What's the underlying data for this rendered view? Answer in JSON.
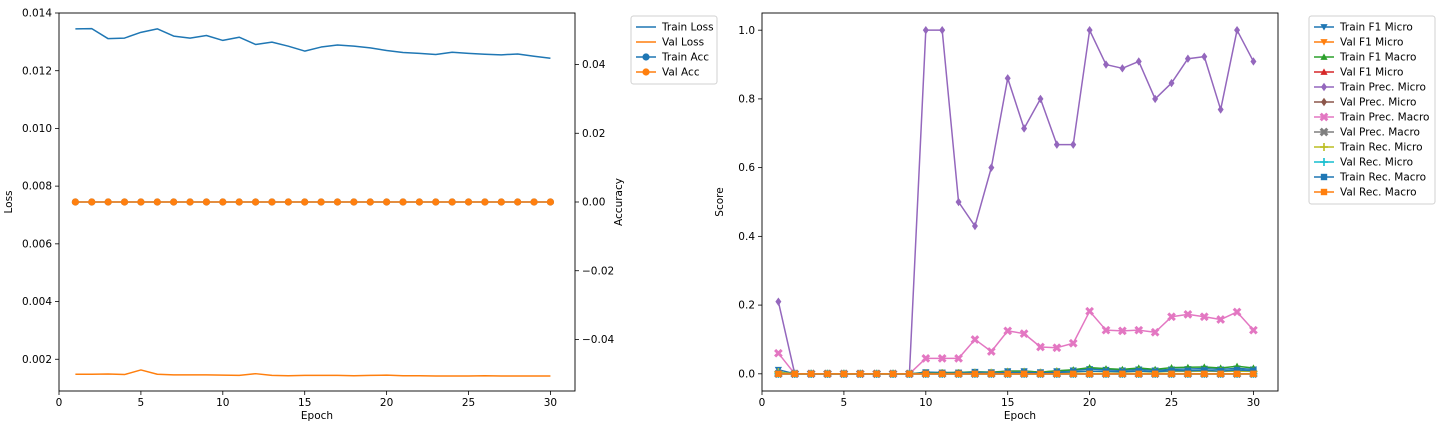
{
  "chart_data": [
    {
      "type": "line",
      "xlabel": "Epoch",
      "ylabel": "Loss",
      "y2label": "Accuracy",
      "xlim": [
        0,
        31.5
      ],
      "ylim": [
        0.0009,
        0.014
      ],
      "y2lim": [
        -0.055,
        0.055
      ],
      "xticks": [
        "0",
        "5",
        "10",
        "15",
        "20",
        "25",
        "30"
      ],
      "yticks": [
        "0.002",
        "0.004",
        "0.006",
        "0.008",
        "0.010",
        "0.012",
        "0.014"
      ],
      "y2ticks": [
        "−0.04",
        "−0.02",
        "0.00",
        "0.02",
        "0.04"
      ],
      "grid": false,
      "legend_position": "outside-right-top",
      "x": [
        1,
        2,
        3,
        4,
        5,
        6,
        7,
        8,
        9,
        10,
        11,
        12,
        13,
        14,
        15,
        16,
        17,
        18,
        19,
        20,
        21,
        22,
        23,
        24,
        25,
        26,
        27,
        28,
        29,
        30
      ],
      "series": [
        {
          "name": "Train Loss",
          "axis": "left",
          "color": "#1f77b4",
          "marker": "none",
          "values": [
            0.01345,
            0.01346,
            0.01311,
            0.01313,
            0.01333,
            0.01345,
            0.0132,
            0.01313,
            0.01322,
            0.01305,
            0.01316,
            0.01291,
            0.01299,
            0.01285,
            0.01268,
            0.01282,
            0.01289,
            0.01285,
            0.01279,
            0.0127,
            0.01263,
            0.0126,
            0.01256,
            0.01264,
            0.0126,
            0.01257,
            0.01255,
            0.01258,
            0.0125,
            0.01243
          ]
        },
        {
          "name": "Val Loss",
          "axis": "left",
          "color": "#ff7f0e",
          "marker": "none",
          "values": [
            0.00148,
            0.00148,
            0.00149,
            0.00147,
            0.00163,
            0.00148,
            0.00146,
            0.00146,
            0.00146,
            0.00145,
            0.00144,
            0.0015,
            0.00144,
            0.00143,
            0.00144,
            0.00144,
            0.00144,
            0.00143,
            0.00144,
            0.00145,
            0.00143,
            0.00143,
            0.00142,
            0.00142,
            0.00142,
            0.00143,
            0.00142,
            0.00142,
            0.00142,
            0.00142
          ]
        },
        {
          "name": "Train Acc",
          "axis": "right",
          "color": "#1f77b4",
          "marker": "circle",
          "values": [
            0,
            0,
            0,
            0,
            0,
            0,
            0,
            0,
            0,
            0,
            0,
            0,
            0,
            0,
            0,
            0,
            0,
            0,
            0,
            0,
            0,
            0,
            0,
            0,
            0,
            0,
            0,
            0,
            0,
            0
          ]
        },
        {
          "name": "Val Acc",
          "axis": "right",
          "color": "#ff7f0e",
          "marker": "circle",
          "values": [
            0,
            0,
            0,
            0,
            0,
            0,
            0,
            0,
            0,
            0,
            0,
            0,
            0,
            0,
            0,
            0,
            0,
            0,
            0,
            0,
            0,
            0,
            0,
            0,
            0,
            0,
            0,
            0,
            0,
            0
          ]
        }
      ]
    },
    {
      "type": "line",
      "xlabel": "Epoch",
      "ylabel": "Score",
      "xlim": [
        0,
        31.5
      ],
      "ylim": [
        -0.05,
        1.05
      ],
      "xticks": [
        "0",
        "5",
        "10",
        "15",
        "20",
        "25",
        "30"
      ],
      "yticks": [
        "0.0",
        "0.2",
        "0.4",
        "0.6",
        "0.8",
        "1.0"
      ],
      "grid": false,
      "legend_position": "outside-right-top",
      "x": [
        1,
        2,
        3,
        4,
        5,
        6,
        7,
        8,
        9,
        10,
        11,
        12,
        13,
        14,
        15,
        16,
        17,
        18,
        19,
        20,
        21,
        22,
        23,
        24,
        25,
        26,
        27,
        28,
        29,
        30
      ],
      "series": [
        {
          "name": "Train F1 Micro",
          "color": "#1f77b4",
          "marker": "triangle-down",
          "values": [
            0.012,
            0,
            0,
            0,
            0,
            0,
            0,
            0,
            0,
            0.005,
            0.004,
            0.004,
            0.006,
            0.005,
            0.008,
            0.008,
            0.005,
            0.008,
            0.01,
            0.014,
            0.012,
            0.01,
            0.013,
            0.01,
            0.013,
            0.014,
            0.015,
            0.013,
            0.016,
            0.013
          ]
        },
        {
          "name": "Val F1 Micro",
          "color": "#ff7f0e",
          "marker": "triangle-down",
          "values": [
            0,
            0,
            0,
            0,
            0,
            0,
            0,
            0,
            0,
            0,
            0,
            0,
            0,
            0,
            0,
            0,
            0,
            0,
            0,
            0,
            0,
            0,
            0,
            0,
            0,
            0,
            0,
            0,
            0,
            0
          ]
        },
        {
          "name": "Train F1 Macro",
          "color": "#2ca02c",
          "marker": "triangle-up",
          "values": [
            0.003,
            0,
            0,
            0,
            0,
            0,
            0,
            0,
            0,
            0.003,
            0.003,
            0.004,
            0.005,
            0.004,
            0.008,
            0.008,
            0.005,
            0.009,
            0.012,
            0.018,
            0.015,
            0.013,
            0.017,
            0.013,
            0.018,
            0.019,
            0.02,
            0.017,
            0.022,
            0.017
          ]
        },
        {
          "name": "Val F1 Micro",
          "color": "#d62728",
          "marker": "triangle-up",
          "values": [
            0,
            0,
            0,
            0,
            0,
            0,
            0,
            0,
            0,
            0,
            0,
            0,
            0,
            0,
            0,
            0,
            0,
            0,
            0,
            0,
            0,
            0,
            0,
            0,
            0,
            0,
            0,
            0,
            0,
            0
          ]
        },
        {
          "name": "Train Prec. Micro",
          "color": "#9467bd",
          "marker": "diamond",
          "values": [
            0.21,
            0,
            0,
            0,
            0,
            0,
            0,
            0,
            0,
            1.0,
            1.0,
            0.5,
            0.43,
            0.6,
            0.86,
            0.714,
            0.8,
            0.667,
            0.667,
            1.0,
            0.9,
            0.889,
            0.909,
            0.8,
            0.846,
            0.917,
            0.923,
            0.769,
            1.0,
            0.909
          ]
        },
        {
          "name": "Val Prec. Micro",
          "color": "#8c564b",
          "marker": "diamond",
          "values": [
            0,
            0,
            0,
            0,
            0,
            0,
            0,
            0,
            0,
            0,
            0,
            0,
            0,
            0,
            0,
            0,
            0,
            0,
            0,
            0,
            0,
            0,
            0,
            0,
            0,
            0,
            0,
            0,
            0,
            0
          ]
        },
        {
          "name": "Train Prec. Macro",
          "color": "#e377c2",
          "marker": "x-filled",
          "values": [
            0.06,
            0,
            0,
            0,
            0,
            0,
            0,
            0,
            0,
            0.045,
            0.045,
            0.045,
            0.1,
            0.065,
            0.125,
            0.117,
            0.078,
            0.076,
            0.089,
            0.182,
            0.127,
            0.125,
            0.127,
            0.121,
            0.166,
            0.173,
            0.166,
            0.158,
            0.18,
            0.127
          ]
        },
        {
          "name": "Val Prec. Macro",
          "color": "#7f7f7f",
          "marker": "x-filled",
          "values": [
            0,
            0,
            0,
            0,
            0,
            0,
            0,
            0,
            0,
            0,
            0,
            0,
            0,
            0,
            0,
            0,
            0,
            0,
            0,
            0,
            0,
            0,
            0,
            0,
            0,
            0,
            0,
            0,
            0,
            0
          ]
        },
        {
          "name": "Train Rec. Micro",
          "color": "#bcbd22",
          "marker": "plus",
          "values": [
            0.005,
            0,
            0,
            0,
            0,
            0,
            0,
            0,
            0,
            0.002,
            0.002,
            0.002,
            0.003,
            0.003,
            0.004,
            0.004,
            0.003,
            0.004,
            0.005,
            0.007,
            0.006,
            0.005,
            0.007,
            0.005,
            0.007,
            0.007,
            0.008,
            0.007,
            0.008,
            0.007
          ]
        },
        {
          "name": "Val Rec. Micro",
          "color": "#17becf",
          "marker": "plus",
          "values": [
            0,
            0,
            0,
            0,
            0,
            0,
            0,
            0,
            0,
            0,
            0,
            0,
            0,
            0,
            0,
            0,
            0,
            0,
            0,
            0,
            0,
            0,
            0,
            0,
            0,
            0,
            0,
            0,
            0,
            0
          ]
        },
        {
          "name": "Train Rec. Macro",
          "color": "#1f77b4",
          "marker": "square",
          "values": [
            0.001,
            0,
            0,
            0,
            0,
            0,
            0,
            0,
            0,
            0.002,
            0.002,
            0.002,
            0.003,
            0.002,
            0.004,
            0.004,
            0.003,
            0.004,
            0.006,
            0.008,
            0.007,
            0.006,
            0.008,
            0.006,
            0.009,
            0.009,
            0.01,
            0.008,
            0.011,
            0.009
          ]
        },
        {
          "name": "Val Rec. Macro",
          "color": "#ff7f0e",
          "marker": "square",
          "values": [
            0,
            0,
            0,
            0,
            0,
            0,
            0,
            0,
            0,
            0,
            0,
            0,
            0,
            0,
            0,
            0,
            0,
            0,
            0,
            0,
            0,
            0,
            0,
            0,
            0,
            0,
            0,
            0,
            0,
            0
          ]
        }
      ]
    }
  ]
}
